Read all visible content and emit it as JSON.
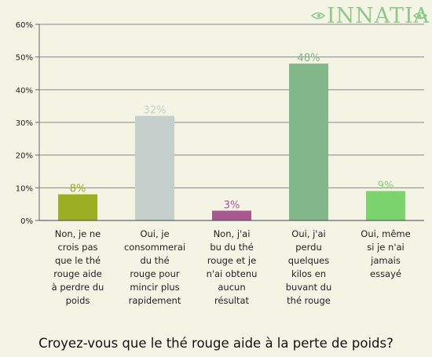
{
  "logo": {
    "text": "INNATIA",
    "color": "#8ec98a"
  },
  "chart_data": {
    "type": "bar",
    "title": "Croyez-vous que le thé rouge aide à la perte de poids?",
    "xlabel": "",
    "ylabel": "",
    "ylim": [
      0,
      60
    ],
    "yticks": [
      0,
      10,
      20,
      30,
      40,
      50,
      60
    ],
    "ytick_labels": [
      "0%",
      "10%",
      "20%",
      "30%",
      "40%",
      "50%",
      "60%"
    ],
    "grid": true,
    "categories": [
      "Non, je ne crois pas que le thé rouge aide à perdre du poids",
      "Oui, je consommerai du thé rouge pour mincir plus rapidement",
      "Non, j'ai bu du thé rouge et je n'ai obtenu aucun résultat",
      "Oui, j'ai perdu quelques kilos en buvant du thé rouge",
      "Oui, même si je n'ai jamais essayé"
    ],
    "category_lines": [
      [
        "Non, je ne",
        "crois pas",
        "que le thé",
        "rouge aide",
        "à perdre du",
        "poids"
      ],
      [
        "Oui, je",
        "consommerai",
        "du thé",
        "rouge pour",
        "mincir plus",
        "rapidement"
      ],
      [
        "Non, j'ai",
        "bu du thé",
        "rouge et je",
        "n'ai obtenu",
        "aucun",
        "résultat"
      ],
      [
        "Oui, j'ai",
        "perdu",
        "quelques",
        "kilos en",
        "buvant du",
        "thé rouge"
      ],
      [
        "Oui, même",
        "si je n'ai",
        "jamais",
        "essayé"
      ]
    ],
    "values": [
      8,
      32,
      3,
      48,
      9
    ],
    "value_labels": [
      "8%",
      "32%",
      "3%",
      "48%",
      "9%"
    ],
    "colors": [
      "#9aaf24",
      "#c5d0cc",
      "#a65a91",
      "#82b88a",
      "#7bd46e"
    ]
  }
}
